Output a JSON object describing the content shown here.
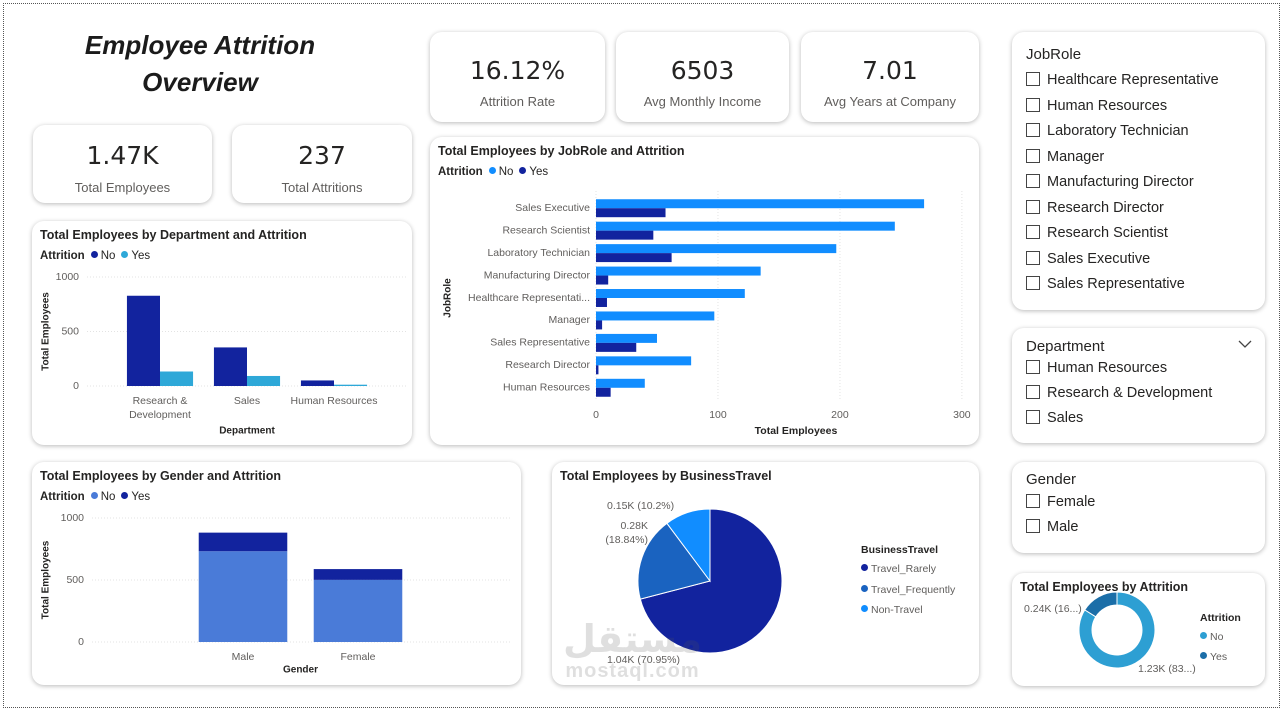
{
  "title": "Employee Attrition Overview",
  "kpis": [
    {
      "value": "16.12%",
      "label": "Attrition Rate"
    },
    {
      "value": 6503,
      "label": "Avg Monthly Income"
    },
    {
      "value": 7.01,
      "label": "Avg Years at Company"
    },
    {
      "value": "1.47K",
      "label": "Total Employees"
    },
    {
      "value": 237,
      "label": "Total Attritions"
    }
  ],
  "chart_data": [
    {
      "type": "bar",
      "orientation": "vertical",
      "title": "Total Employees by Department and Attrition",
      "legend_title": "Attrition",
      "categories": [
        "Research & Development",
        "Sales",
        "Human Resources"
      ],
      "series": [
        {
          "name": "No",
          "color": "#12239e",
          "values": [
            828,
            354,
            51
          ]
        },
        {
          "name": "Yes",
          "color": "#2ea8d8",
          "values": [
            133,
            92,
            12
          ]
        }
      ],
      "x_label": "Department",
      "y_label": "Total Employees",
      "ylim": [
        0,
        1000
      ],
      "yticks": [
        0,
        500,
        1000
      ],
      "grid": true
    },
    {
      "type": "bar",
      "orientation": "horizontal",
      "title": "Total Employees by JobRole and Attrition",
      "legend_title": "Attrition",
      "categories": [
        "Sales Executive",
        "Research Scientist",
        "Laboratory Technician",
        "Manufacturing Director",
        "Healthcare Representati...",
        "Manager",
        "Sales Representative",
        "Research Director",
        "Human Resources"
      ],
      "series": [
        {
          "name": "No",
          "color": "#118dff",
          "values": [
            269,
            245,
            197,
            135,
            122,
            97,
            50,
            78,
            40
          ]
        },
        {
          "name": "Yes",
          "color": "#12239e",
          "values": [
            57,
            47,
            62,
            10,
            9,
            5,
            33,
            2,
            12
          ]
        }
      ],
      "x_label": "Total Employees",
      "y_label": "JobRole",
      "xlim": [
        0,
        305
      ],
      "xticks": [
        0,
        100,
        200,
        300
      ],
      "grid": true
    },
    {
      "type": "bar",
      "orientation": "vertical",
      "stacked": true,
      "title": "Total Employees by Gender and Attrition",
      "legend_title": "Attrition",
      "categories": [
        "Male",
        "Female"
      ],
      "series": [
        {
          "name": "No",
          "color": "#4a7bd8",
          "values": [
            732,
            501
          ]
        },
        {
          "name": "Yes",
          "color": "#12239e",
          "values": [
            150,
            87
          ]
        }
      ],
      "x_label": "Gender",
      "y_label": "Total Employees",
      "ylim": [
        0,
        1000
      ],
      "yticks": [
        0,
        500,
        1000
      ],
      "grid": true
    },
    {
      "type": "pie",
      "title": "Total Employees by BusinessTravel",
      "legend_title": "BusinessTravel",
      "categories": [
        "Travel_Rarely",
        "Travel_Frequently",
        "Non-Travel"
      ],
      "values": [
        1043,
        277,
        150
      ],
      "value_labels": [
        "1.04K (70.95%)",
        "0.28K (18.84%)",
        "0.15K (10.2%)"
      ],
      "colors": [
        "#12239e",
        "#1a63c0",
        "#118dff"
      ]
    },
    {
      "type": "donut",
      "title": "Total Employees by Attrition",
      "legend_title": "Attrition",
      "categories": [
        "No",
        "Yes"
      ],
      "values": [
        1233,
        237
      ],
      "value_labels": [
        "1.23K (83...)",
        "0.24K (16...)"
      ],
      "colors": [
        "#2d9fd3",
        "#1b6ea8"
      ]
    }
  ],
  "slicers": [
    {
      "title": "JobRole",
      "items": [
        "Healthcare Representative",
        "Human Resources",
        "Laboratory Technician",
        "Manager",
        "Manufacturing Director",
        "Research Director",
        "Research Scientist",
        "Sales Executive",
        "Sales Representative"
      ]
    },
    {
      "title": "Department",
      "items": [
        "Human Resources",
        "Research & Development",
        "Sales"
      ]
    },
    {
      "title": "Gender",
      "items": [
        "Female",
        "Male"
      ]
    }
  ],
  "watermark": {
    "logo": "مستقل",
    "site": "mostaql.com"
  }
}
